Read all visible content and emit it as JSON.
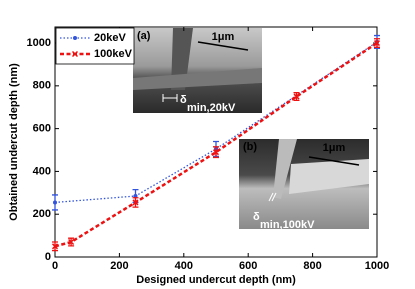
{
  "chart_data": {
    "type": "line",
    "xlabel": "Designed undercut depth (nm)",
    "ylabel": "Obtained undercut depth (nm)",
    "xlim": [
      0,
      1000
    ],
    "xticks": [
      0,
      200,
      400,
      600,
      800,
      1000
    ],
    "ylim": [
      0,
      1075
    ],
    "yticks": [
      0,
      200,
      400,
      600,
      800,
      1000
    ],
    "legend": "upper left",
    "series": [
      {
        "name": "20keV",
        "color": "#3355dd",
        "style": "dotted",
        "marker": "circle",
        "x": [
          0,
          250,
          500,
          1000
        ],
        "values": [
          255,
          285,
          505,
          1005
        ],
        "errors": [
          35,
          30,
          35,
          30
        ]
      },
      {
        "name": "100keV",
        "color": "#ee1111",
        "style": "dashed",
        "marker": "x",
        "x": [
          0,
          50,
          250,
          500,
          750,
          1000
        ],
        "values": [
          50,
          70,
          255,
          490,
          750,
          1000
        ],
        "errors": [
          20,
          18,
          22,
          25,
          18,
          20
        ]
      }
    ],
    "insets": [
      {
        "label": "(a)",
        "scale": "1μm",
        "symbol": "δ",
        "subscript": "min,20kV"
      },
      {
        "label": "(b)",
        "scale": "1μm",
        "symbol": "δ",
        "subscript": "min,100kV"
      }
    ]
  }
}
